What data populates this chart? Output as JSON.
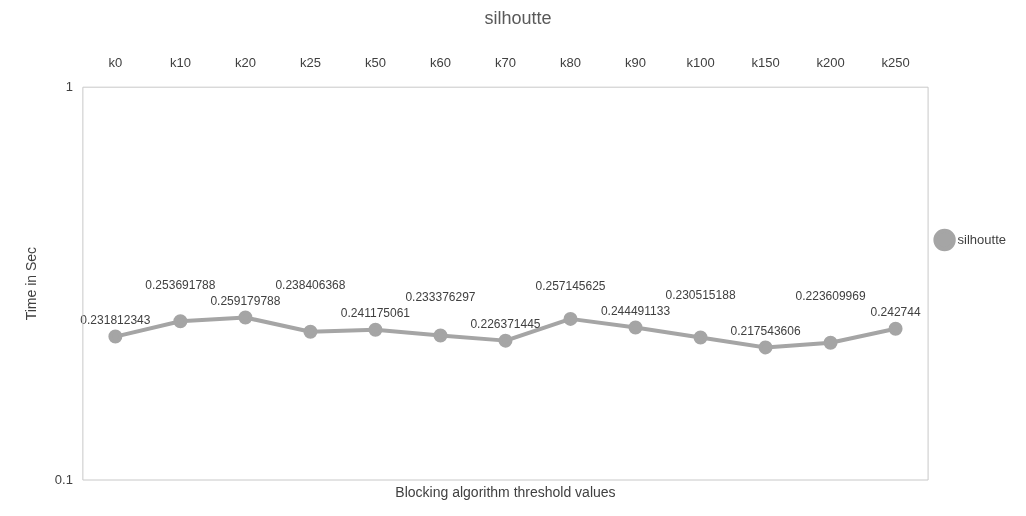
{
  "chart_data": {
    "type": "line",
    "title": "silhoutte",
    "xlabel": "Blocking algorithm threshold values",
    "ylabel": "Time in Sec",
    "categories": [
      "k0",
      "k10",
      "k20",
      "k25",
      "k50",
      "k60",
      "k70",
      "k80",
      "k90",
      "k100",
      "k150",
      "k200",
      "k250"
    ],
    "series": [
      {
        "name": "silhoutte",
        "color": "#a5a5a5",
        "values": [
          0.231812343,
          0.253691788,
          0.259179788,
          0.238406368,
          0.241175061,
          0.233376297,
          0.226371445,
          0.257145625,
          0.244491133,
          0.230515188,
          0.217543606,
          0.223609969,
          0.242744
        ]
      }
    ],
    "log": "y",
    "ylim": [
      0.1,
      1
    ],
    "yticks": [
      0.1,
      1
    ],
    "data_labels": true,
    "legend": "right",
    "marker": "circle",
    "line_style": "solid"
  }
}
